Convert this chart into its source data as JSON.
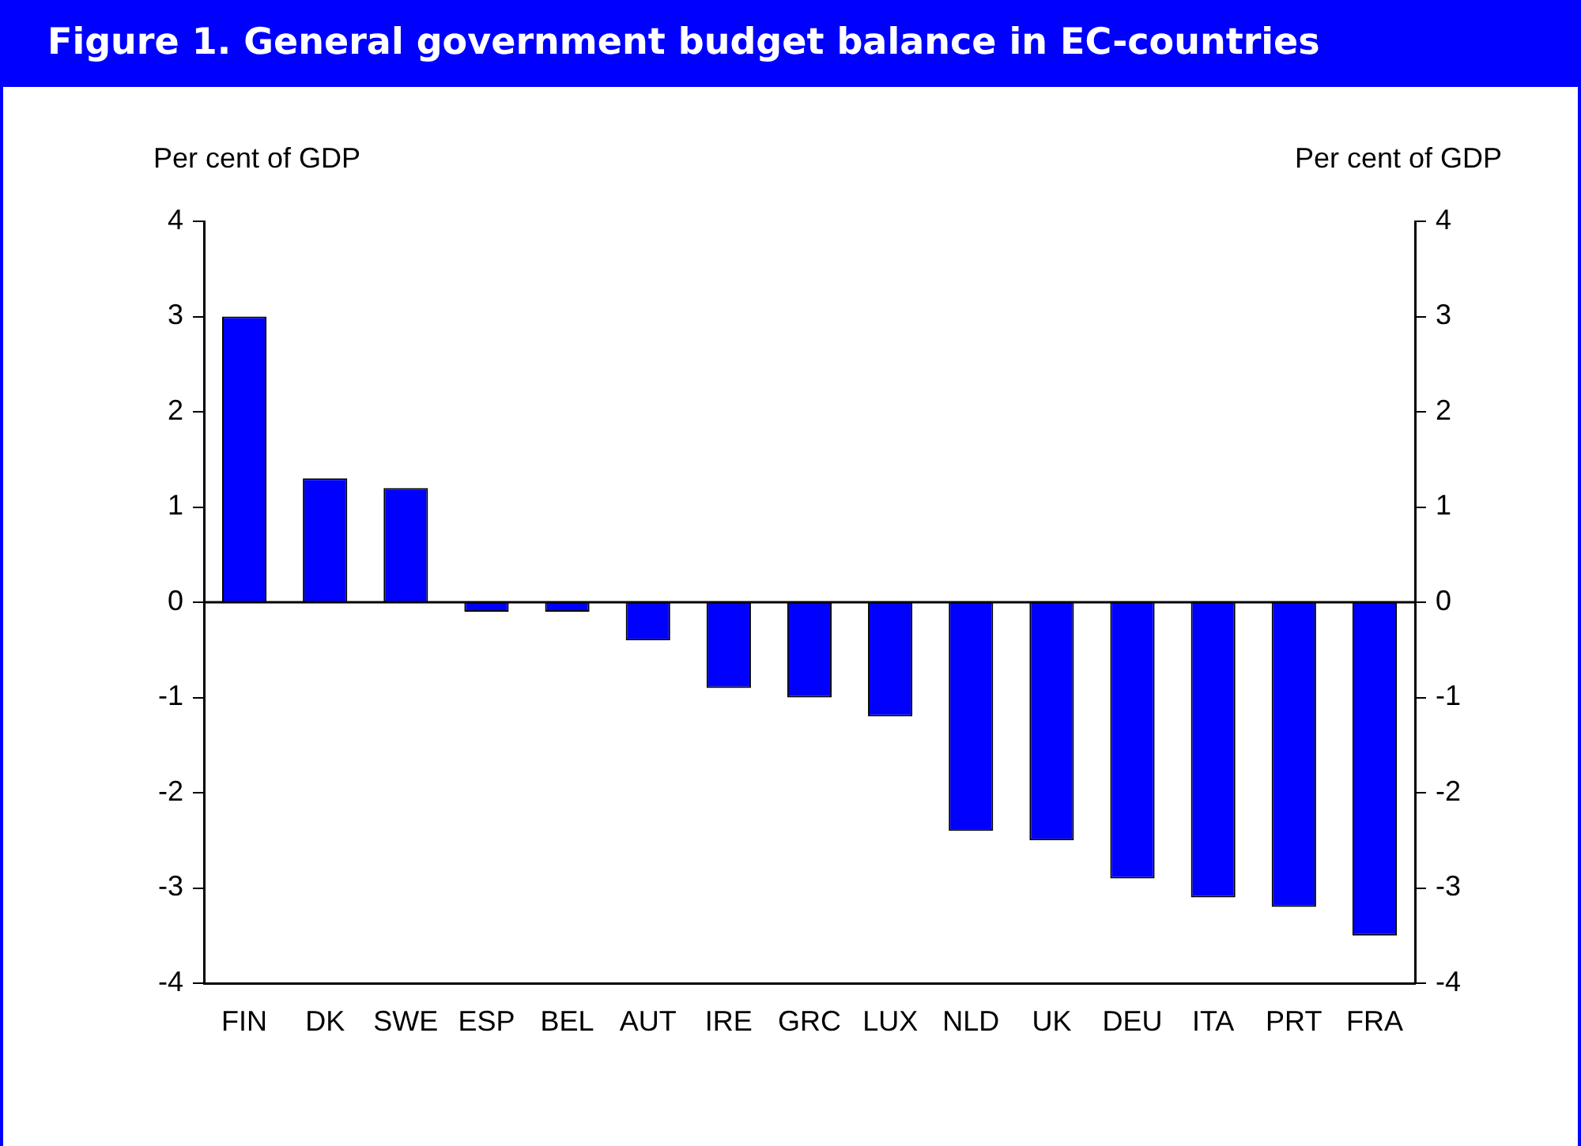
{
  "chart_data": {
    "type": "bar",
    "title": "Figure 1. General government budget balance in EC-countries",
    "ylabel": "Per cent of GDP",
    "y2label": "Per cent of GDP",
    "categories": [
      "FIN",
      "DK",
      "SWE",
      "ESP",
      "BEL",
      "AUT",
      "IRE",
      "GRC",
      "LUX",
      "NLD",
      "UK",
      "DEU",
      "ITA",
      "PRT",
      "FRA"
    ],
    "values": [
      3.0,
      1.3,
      1.2,
      -0.1,
      -0.1,
      -0.4,
      -0.9,
      -1.0,
      -1.2,
      -2.4,
      -2.5,
      -2.9,
      -3.1,
      -3.2,
      -3.5
    ],
    "color": "#0000ff",
    "ylim": [
      -4,
      4
    ],
    "yticks": [
      -4,
      -3,
      -2,
      -1,
      0,
      1,
      2,
      3,
      4
    ],
    "y2lim": [
      -4,
      4
    ],
    "y2ticks": [
      -4,
      -3,
      -2,
      -1,
      0,
      1,
      2,
      3,
      4
    ],
    "ref_lines": [
      {
        "axis": "y",
        "value": 0,
        "color": "#000000"
      }
    ],
    "grid": false,
    "legend": false
  }
}
